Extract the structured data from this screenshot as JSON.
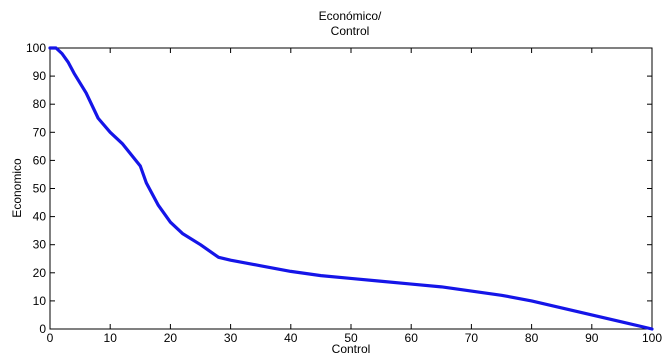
{
  "chart_data": {
    "type": "line",
    "title": [
      "Económico/",
      "Control"
    ],
    "xlabel": "Control",
    "ylabel": "Economico",
    "xlim": [
      0,
      100
    ],
    "ylim": [
      0,
      100
    ],
    "xticks": [
      0,
      10,
      20,
      30,
      40,
      50,
      60,
      70,
      80,
      90,
      100
    ],
    "yticks": [
      0,
      10,
      20,
      30,
      40,
      50,
      60,
      70,
      80,
      90,
      100
    ],
    "xtick_labels": [
      "0",
      "10",
      "20",
      "30",
      "40",
      "50",
      "60",
      "70",
      "80",
      "90",
      "100"
    ],
    "ytick_labels": [
      "0",
      "10",
      "20",
      "30",
      "40",
      "50",
      "60",
      "70",
      "80",
      "90",
      "100"
    ],
    "grid": false,
    "line_color": "#1515e8",
    "series": [
      {
        "x": [
          0,
          1,
          2,
          3,
          4,
          6,
          8,
          10,
          12,
          15,
          16,
          18,
          20,
          22,
          25,
          28,
          30,
          35,
          40,
          45,
          50,
          55,
          60,
          65,
          70,
          75,
          80,
          85,
          90,
          95,
          100
        ],
        "y": [
          100,
          100,
          98,
          95,
          91,
          84,
          75,
          70,
          66,
          58,
          52,
          44,
          38,
          34,
          30,
          25.5,
          24.5,
          22.5,
          20.5,
          19,
          18,
          17,
          16,
          15,
          13.5,
          12,
          10,
          7.5,
          5,
          2.5,
          0
        ]
      }
    ]
  }
}
